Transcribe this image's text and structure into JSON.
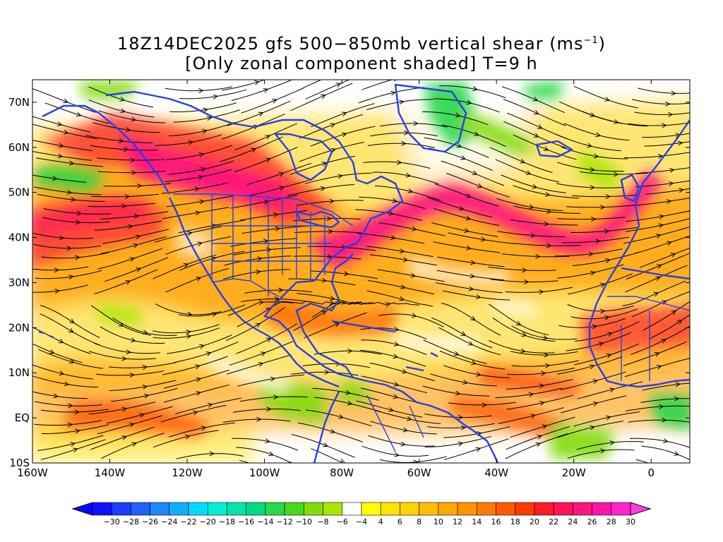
{
  "title": {
    "line1_a": "18Z14DEC2025 gfs 500−850mb vertical shear (ms",
    "line1_sup": "−1",
    "line1_b": ")",
    "line2": "[Only zonal component shaded] T=9 h"
  },
  "map": {
    "lon_range": [
      -160,
      10
    ],
    "lat_range": [
      -10,
      75
    ],
    "lat_labels": [
      "70N",
      "60N",
      "50N",
      "40N",
      "30N",
      "20N",
      "10N",
      "EQ",
      "10S"
    ],
    "lat_values": [
      70,
      60,
      50,
      40,
      30,
      20,
      10,
      0,
      -10
    ],
    "lon_labels": [
      "160W",
      "140W",
      "120W",
      "100W",
      "80W",
      "60W",
      "40W",
      "20W",
      "0"
    ],
    "lon_values": [
      -160,
      -140,
      -120,
      -100,
      -80,
      -60,
      -40,
      -20,
      0
    ],
    "coastline_color": "#2a3ee6",
    "streamline_color": "#000000"
  },
  "colorbar": {
    "labels": [
      "−30",
      "−28",
      "−26",
      "−24",
      "−22",
      "−20",
      "−18",
      "−16",
      "−14",
      "−12",
      "−10",
      "−8",
      "−6",
      "−4",
      "4",
      "6",
      "8",
      "10",
      "12",
      "14",
      "16",
      "18",
      "20",
      "22",
      "24",
      "26",
      "28",
      "30"
    ],
    "colors": [
      "#1010ff",
      "#1c3cff",
      "#2060ff",
      "#1f86ff",
      "#14acff",
      "#00dcff",
      "#00f0d8",
      "#00e6a8",
      "#00dc82",
      "#28d84a",
      "#4ad81e",
      "#82dc0a",
      "#aae600",
      "#ffffff",
      "#ffff00",
      "#ffe400",
      "#ffd200",
      "#ffbe00",
      "#ffa800",
      "#ff9400",
      "#ff7a00",
      "#ff5a00",
      "#ff3a00",
      "#ff1a28",
      "#ff1458",
      "#ff1480",
      "#ff14a8",
      "#ff24c8"
    ],
    "low_arrow_color": "#0808ff",
    "high_arrow_color": "#ff3ce0"
  }
}
